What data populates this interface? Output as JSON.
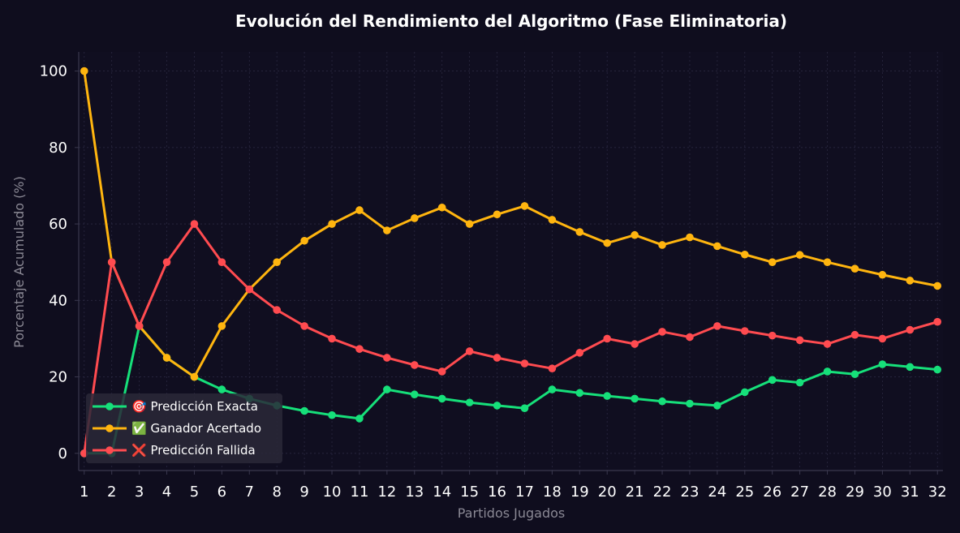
{
  "chart_data": {
    "type": "line",
    "title": "Evolución del Rendimiento del Algoritmo (Fase Eliminatoria)",
    "xlabel": "Partidos Jugados",
    "ylabel": "Porcentaje Acumulado (%)",
    "x": [
      1,
      2,
      3,
      4,
      5,
      6,
      7,
      8,
      9,
      10,
      11,
      12,
      13,
      14,
      15,
      16,
      17,
      18,
      19,
      20,
      21,
      22,
      23,
      24,
      25,
      26,
      27,
      28,
      29,
      30,
      31,
      32
    ],
    "yticks": [
      0,
      20,
      40,
      60,
      80,
      100
    ],
    "ylim": [
      -4.5,
      105
    ],
    "xlim": [
      0.8,
      32.2
    ],
    "grid": true,
    "legend_position": "lower-left",
    "series": [
      {
        "name": "🎯 Predicción Exacta",
        "legend_icon": "target-icon",
        "color": "#16e07a",
        "values": [
          0,
          0,
          33.3,
          25,
          20,
          16.7,
          14.3,
          12.5,
          11.1,
          10,
          9.1,
          16.7,
          15.4,
          14.3,
          13.3,
          12.5,
          11.8,
          16.7,
          15.8,
          15,
          14.3,
          13.6,
          13,
          12.5,
          16,
          19.2,
          18.5,
          21.4,
          20.7,
          23.3,
          22.6,
          21.9
        ]
      },
      {
        "name": "✅ Ganador Acertado",
        "legend_icon": "check-icon",
        "color": "#ffb50f",
        "values": [
          100,
          50,
          33.3,
          25,
          20,
          33.3,
          42.9,
          50,
          55.6,
          60,
          63.6,
          58.3,
          61.5,
          64.3,
          60,
          62.5,
          64.7,
          61.1,
          57.9,
          55,
          57.1,
          54.5,
          56.5,
          54.2,
          52,
          50,
          51.9,
          50,
          48.3,
          46.7,
          45.2,
          43.8
        ]
      },
      {
        "name": "❌ Predicción Fallida",
        "legend_icon": "cross-icon",
        "color": "#ff4b50",
        "values": [
          0,
          50,
          33.3,
          50,
          60,
          50,
          42.9,
          37.5,
          33.3,
          30,
          27.3,
          25,
          23.1,
          21.4,
          26.7,
          25,
          23.5,
          22.2,
          26.3,
          30,
          28.6,
          31.8,
          30.4,
          33.3,
          32,
          30.8,
          29.6,
          28.6,
          31,
          30,
          32.3,
          34.4
        ]
      }
    ]
  }
}
